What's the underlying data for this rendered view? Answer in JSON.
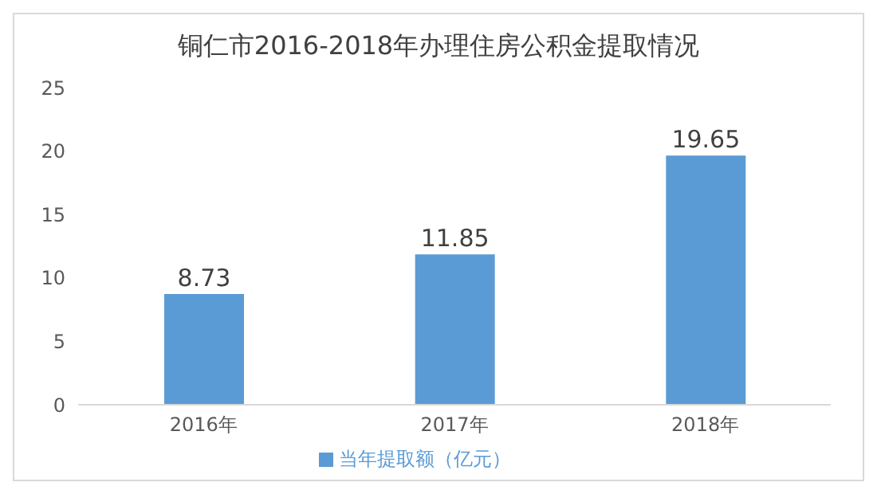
{
  "chart_data": {
    "type": "bar",
    "title": "铜仁市2016-2018年办理住房公积金提取情况",
    "categories": [
      "2016年",
      "2017年",
      "2018年"
    ],
    "series": [
      {
        "name": "当年提取额（亿元）",
        "color": "#5b9bd5",
        "values": [
          8.73,
          11.85,
          19.65
        ]
      }
    ],
    "ylim": [
      0,
      25
    ],
    "yticks": [
      0,
      5,
      10,
      15,
      20,
      25
    ],
    "grid": false,
    "legend": "bottom",
    "data_labels": true
  }
}
